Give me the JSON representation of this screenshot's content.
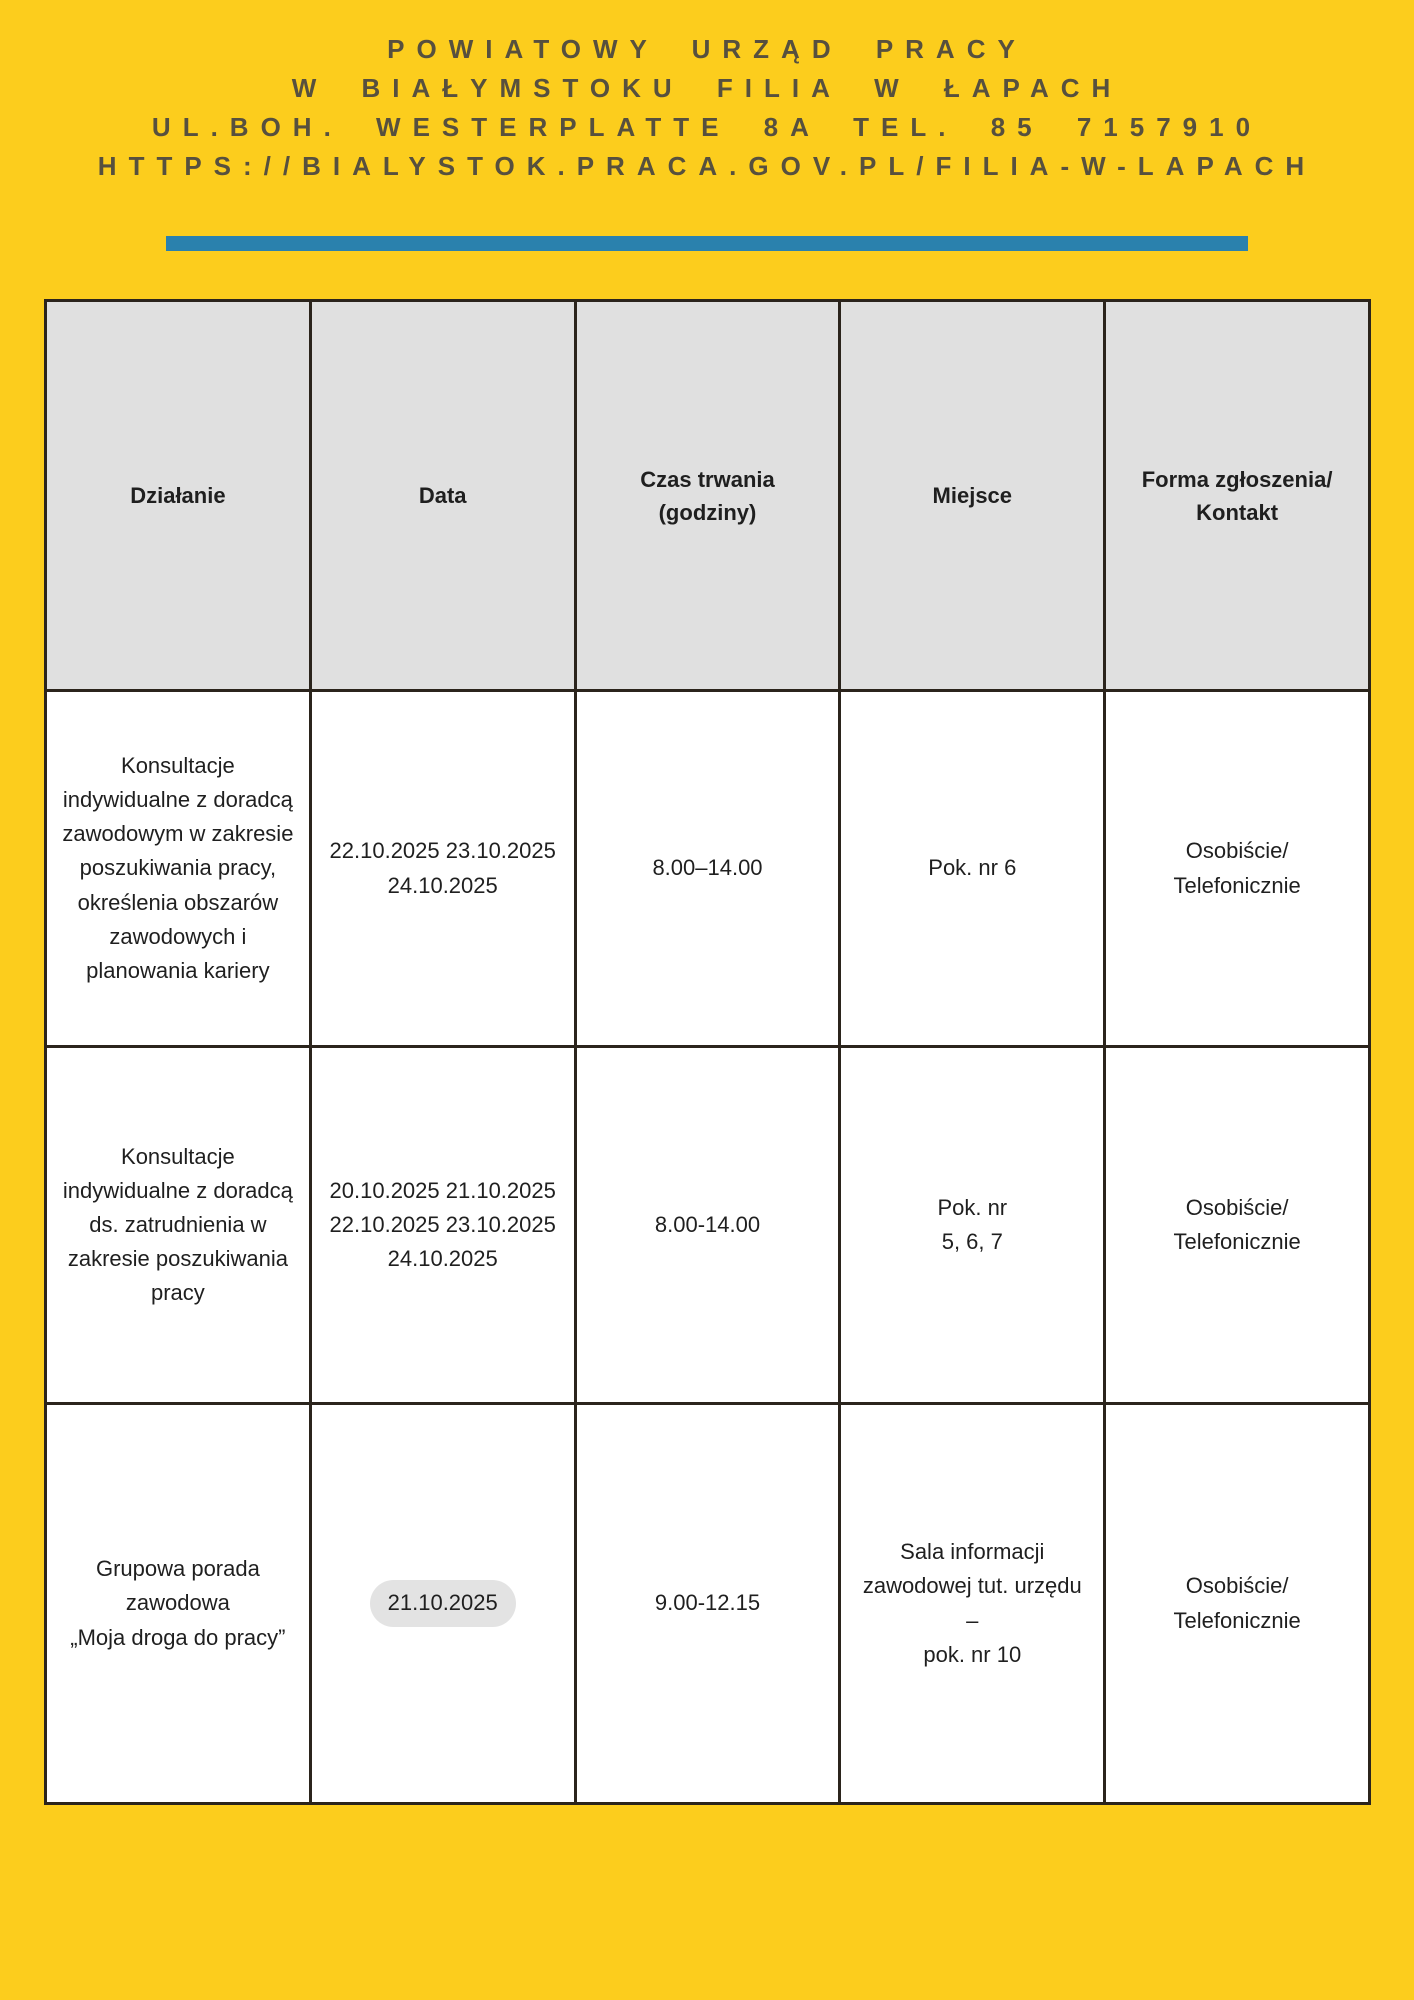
{
  "header": {
    "line1": "POWIATOWY URZĄD PRACY",
    "line2": "W BIAŁYMSTOKU FILIA W ŁAPACH",
    "line3": "UL.BOH. WESTERPLATTE 8A TEL. 85 7157910",
    "line4": "HTTPS://BIALYSTOK.PRACA.GOV.PL/FILIA-W-LAPACH"
  },
  "table": {
    "headers": [
      "Działanie",
      "Data",
      "Czas trwania\n(godziny)",
      "Miejsce",
      "Forma zgłoszenia/\nKontakt"
    ],
    "rows": [
      {
        "action": "Konsultacje\nindywidualne z doradcą\nzawodowym w zakresie\nposzukiwania pracy,\nokreślenia obszarów\nzawodowych i\nplanowania kariery",
        "date": "22.10.2025 23.10.2025\n24.10.2025",
        "time": "8.00–14.00",
        "place": "Pok. nr 6",
        "contact": "Osobiście/\nTelefonicznie"
      },
      {
        "action": "Konsultacje\nindywidualne z doradcą\nds. zatrudnienia w\nzakresie poszukiwania\npracy",
        "date": "20.10.2025 21.10.2025\n22.10.2025 23.10.2025\n24.10.2025",
        "time": "8.00-14.00",
        "place": "Pok. nr\n5, 6, 7",
        "contact": "Osobiście/\nTelefonicznie"
      },
      {
        "action": "Grupowa porada\nzawodowa\n„Moja droga do pracy”",
        "date": "21.10.2025",
        "time": "9.00-12.15",
        "place": "Sala informacji\nzawodowej tut. urzędu\n–\npok. nr 10",
        "contact": "Osobiście/\nTelefonicznie"
      }
    ]
  },
  "colors": {
    "page_bg": "#fccd1d",
    "header_text": "#57503e",
    "divider": "#2a81ad",
    "table_border": "#2b241c",
    "table_header_bg": "#e0e0e0",
    "table_body_bg": "#ffffff",
    "table_text": "#1f1f1f",
    "highlight_pill_bg": "#e3e3e3"
  }
}
